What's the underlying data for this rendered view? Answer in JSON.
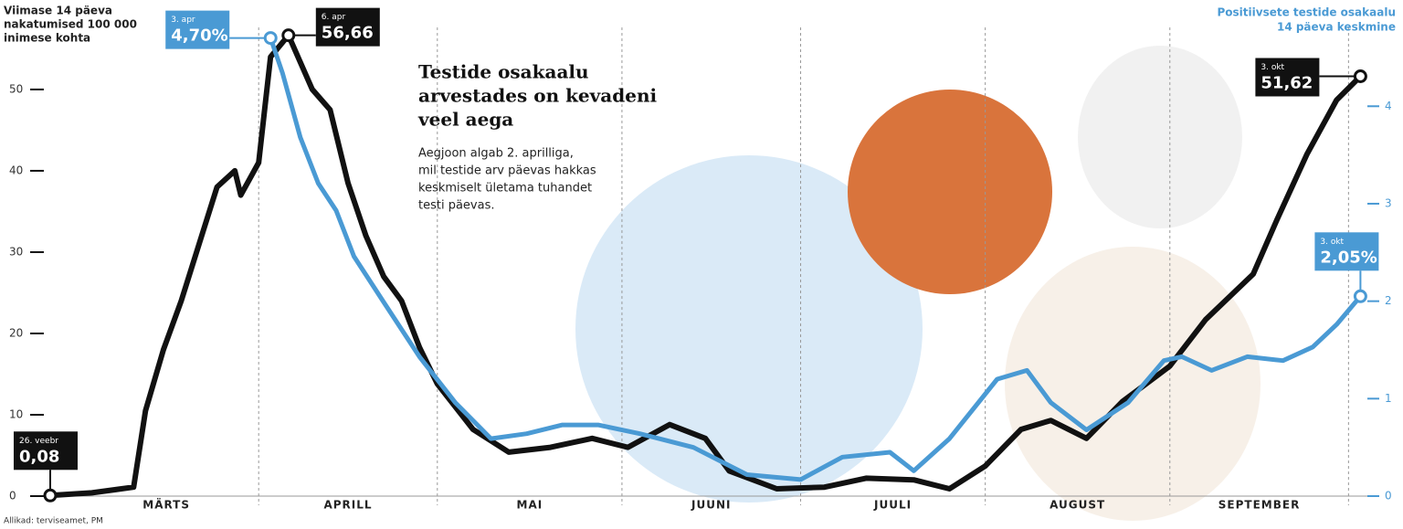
{
  "chart_data": {
    "type": "line",
    "title": [
      "Testide osakaalu",
      "arvestades on kevadeni",
      "veel aega"
    ],
    "subtitle": [
      "Aegjoon algab 2. aprilliga,",
      "mil testide arv päevas hakkas",
      "keskmiselt ületama tuhandet",
      "testi päevas."
    ],
    "ylabel": [
      "Viimase 14 päeva",
      "nakatumised 100 000",
      "inimese kohta"
    ],
    "y2label": [
      "Positiivsete testide osakaalu",
      "14 päeva keskmine"
    ],
    "source": "Allikad: terviseamet, PM",
    "months": [
      "MÄRTS",
      "APRILL",
      "MAI",
      "JUUNI",
      "JUULI",
      "AUGUST",
      "SEPTEMBER"
    ],
    "ylim": [
      0,
      61
    ],
    "yticks": [
      0,
      10,
      20,
      30,
      40,
      50
    ],
    "y2lim": [
      0,
      5.09
    ],
    "y2ticks": [
      0,
      1,
      2,
      3,
      4
    ],
    "series": [
      {
        "name": "Viimase 14 päeva nakatumised 100 000 inimese kohta",
        "color": "#111111",
        "x": [
          "02-26",
          "03-04",
          "03-11",
          "03-13",
          "03-16",
          "03-19",
          "03-22",
          "03-25",
          "03-28",
          "03-29",
          "04-01",
          "04-03",
          "04-06",
          "04-10",
          "04-13",
          "04-16",
          "04-19",
          "04-22",
          "04-25",
          "04-28",
          "05-01",
          "05-07",
          "05-13",
          "05-20",
          "05-27",
          "06-02",
          "06-09",
          "06-15",
          "06-19",
          "06-27",
          "07-05",
          "07-12",
          "07-20",
          "07-26",
          "08-01",
          "08-07",
          "08-12",
          "08-18",
          "08-24",
          "09-01",
          "09-07",
          "09-15",
          "09-19",
          "09-24",
          "09-29",
          "10-03"
        ],
        "values": [
          0.08,
          0.4,
          1.1,
          10.5,
          18,
          24,
          31,
          38,
          40,
          37,
          41,
          54,
          56.66,
          50,
          47.5,
          38.5,
          32,
          27,
          24,
          18.3,
          13.8,
          8.2,
          5.4,
          6,
          7.1,
          6,
          8.8,
          7.1,
          3.1,
          0.9,
          1.1,
          2.2,
          2,
          0.9,
          3.7,
          8.2,
          9.3,
          7.1,
          11.6,
          16,
          21.7,
          27.3,
          34,
          42,
          48.7,
          51.62
        ],
        "value_labels": [
          "0,08",
          null,
          null,
          null,
          null,
          null,
          null,
          null,
          null,
          null,
          null,
          null,
          "56,66",
          null,
          null,
          null,
          null,
          null,
          null,
          null,
          null,
          null,
          null,
          null,
          null,
          null,
          null,
          null,
          null,
          null,
          null,
          null,
          null,
          null,
          null,
          null,
          null,
          null,
          null,
          null,
          null,
          null,
          null,
          null,
          null,
          "51,62"
        ],
        "date_labels": [
          "26. veebr",
          null,
          null,
          null,
          null,
          null,
          null,
          null,
          null,
          null,
          null,
          null,
          "6. apr",
          null,
          null,
          null,
          null,
          null,
          null,
          null,
          null,
          null,
          null,
          null,
          null,
          null,
          null,
          null,
          null,
          null,
          null,
          null,
          null,
          null,
          null,
          null,
          null,
          null,
          null,
          null,
          null,
          null,
          null,
          null,
          null,
          "3. okt"
        ]
      },
      {
        "name": "Positiivsete testide osakaalu 14 päeva keskmine",
        "color": "#4a9ad4",
        "axis": "y2",
        "x": [
          "04-03",
          "04-05",
          "04-08",
          "04-11",
          "04-14",
          "04-17",
          "04-22",
          "04-28",
          "05-04",
          "05-10",
          "05-16",
          "05-22",
          "05-28",
          "06-04",
          "06-13",
          "06-22",
          "07-01",
          "07-08",
          "07-16",
          "07-20",
          "07-26",
          "08-03",
          "08-08",
          "08-12",
          "08-18",
          "08-25",
          "08-31",
          "09-03",
          "09-08",
          "09-14",
          "09-20",
          "09-25",
          "09-29",
          "10-03"
        ],
        "values": [
          4.7,
          4.34,
          3.68,
          3.21,
          2.93,
          2.46,
          1.99,
          1.43,
          0.96,
          0.59,
          0.64,
          0.73,
          0.73,
          0.64,
          0.5,
          0.22,
          0.17,
          0.4,
          0.45,
          0.26,
          0.59,
          1.2,
          1.29,
          0.96,
          0.68,
          0.96,
          1.39,
          1.43,
          1.29,
          1.43,
          1.39,
          1.53,
          1.76,
          2.05
        ],
        "value_labels": [
          "4,70%",
          null,
          null,
          null,
          null,
          null,
          null,
          null,
          null,
          null,
          null,
          null,
          null,
          null,
          null,
          null,
          null,
          null,
          null,
          null,
          null,
          null,
          null,
          null,
          null,
          null,
          null,
          null,
          null,
          null,
          null,
          null,
          null,
          "2,05%"
        ],
        "date_labels": [
          "3. apr",
          null,
          null,
          null,
          null,
          null,
          null,
          null,
          null,
          null,
          null,
          null,
          null,
          null,
          null,
          null,
          null,
          null,
          null,
          null,
          null,
          null,
          null,
          null,
          null,
          null,
          null,
          null,
          null,
          null,
          null,
          null,
          null,
          "3. okt"
        ]
      }
    ]
  }
}
